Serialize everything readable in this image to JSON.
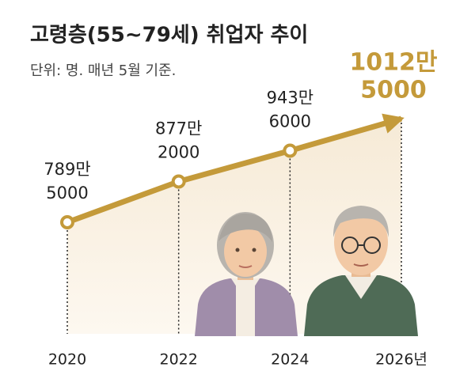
{
  "chart_data": {
    "type": "line",
    "title": "고령층(55~79세) 취업자 추이",
    "subtitle": "단위: 명. 매년 5월 기준.",
    "categories": [
      "2020",
      "2022",
      "2024",
      "2026년"
    ],
    "values": [
      7895000,
      8772000,
      9436000,
      10125000
    ],
    "value_labels": [
      [
        "789만",
        "5000"
      ],
      [
        "877만",
        "2000"
      ],
      [
        "943만",
        "6000"
      ],
      [
        "1012만",
        "5000"
      ]
    ],
    "color": "#c49a3a"
  }
}
